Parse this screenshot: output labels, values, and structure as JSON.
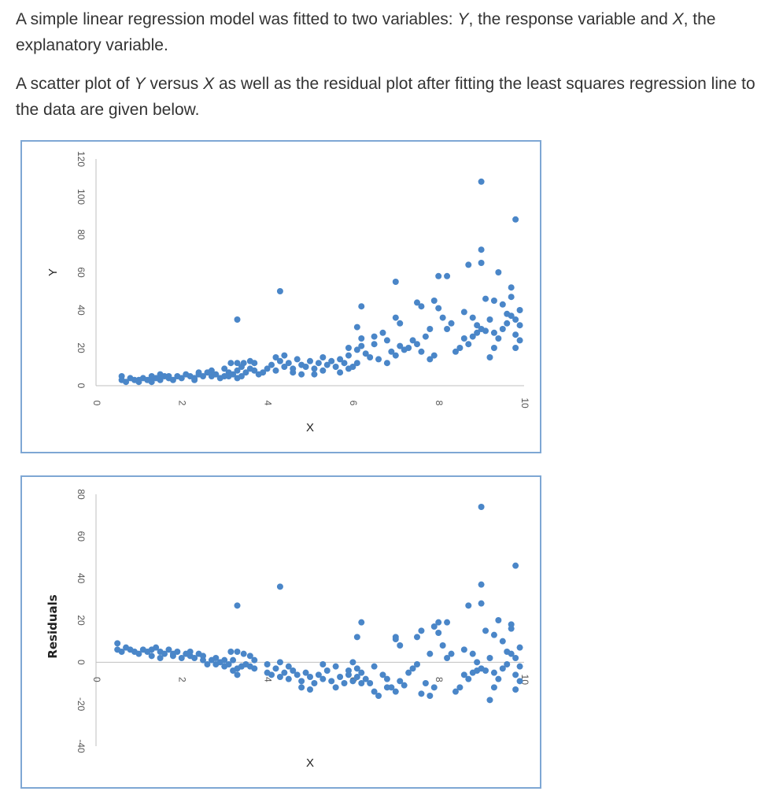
{
  "text": {
    "p1_a": "A simple linear regression model was fitted to two variables: ",
    "p1_y": "Y",
    "p1_b": ", the response variable and ",
    "p1_x": "X",
    "p1_c": ", the explanatory variable.",
    "p2_a": "A scatter plot of ",
    "p2_y": "Y",
    "p2_b": " versus ",
    "p2_x": "X",
    "p2_c": " as well as the residual plot after fitting the least squares regression line to the data are given below."
  },
  "colors": {
    "points": "#4a86c8",
    "frame": "#7ea7d4",
    "axis": "#bfbfbf"
  },
  "chart_data": [
    {
      "type": "scatter",
      "title": "",
      "xlabel": "X",
      "ylabel": "Y",
      "xlim": [
        0,
        10
      ],
      "ylim": [
        0,
        120
      ],
      "xticks": [
        "0",
        "2",
        "4",
        "6",
        "8",
        "10"
      ],
      "yticks": [
        "0",
        "20",
        "40",
        "60",
        "80",
        "100",
        "120"
      ],
      "points": [
        [
          0.6,
          5
        ],
        [
          0.6,
          3
        ],
        [
          0.7,
          2
        ],
        [
          0.8,
          4
        ],
        [
          0.9,
          3
        ],
        [
          1.0,
          2
        ],
        [
          1.1,
          4
        ],
        [
          1.2,
          3
        ],
        [
          1.3,
          5
        ],
        [
          1.4,
          4
        ],
        [
          1.5,
          3
        ],
        [
          1.5,
          6
        ],
        [
          1.6,
          5
        ],
        [
          1.7,
          4
        ],
        [
          1.8,
          3
        ],
        [
          1.9,
          5
        ],
        [
          2.0,
          4
        ],
        [
          2.1,
          6
        ],
        [
          2.2,
          5
        ],
        [
          2.3,
          4
        ],
        [
          2.4,
          6
        ],
        [
          2.5,
          5
        ],
        [
          2.6,
          7
        ],
        [
          2.7,
          5
        ],
        [
          2.8,
          6
        ],
        [
          2.9,
          4
        ],
        [
          3.0,
          5
        ],
        [
          3.1,
          7
        ],
        [
          3.2,
          6
        ],
        [
          3.3,
          8
        ],
        [
          3.4,
          5
        ],
        [
          3.5,
          7
        ],
        [
          3.6,
          9
        ],
        [
          3.7,
          8
        ],
        [
          3.8,
          6
        ],
        [
          3.9,
          7
        ],
        [
          1.0,
          3
        ],
        [
          1.3,
          2
        ],
        [
          1.7,
          5
        ],
        [
          2.3,
          3
        ],
        [
          2.7,
          8
        ],
        [
          3.1,
          5
        ],
        [
          2.4,
          7
        ],
        [
          3.0,
          9
        ],
        [
          3.3,
          4
        ],
        [
          3.4,
          10
        ],
        [
          3.15,
          12
        ],
        [
          3.3,
          12
        ],
        [
          3.45,
          12
        ],
        [
          3.6,
          13
        ],
        [
          3.7,
          12
        ],
        [
          3.3,
          35
        ],
        [
          4.3,
          50
        ],
        [
          4.0,
          9
        ],
        [
          4.1,
          11
        ],
        [
          4.2,
          8
        ],
        [
          4.3,
          13
        ],
        [
          4.4,
          10
        ],
        [
          4.5,
          12
        ],
        [
          4.6,
          9
        ],
        [
          4.7,
          14
        ],
        [
          4.8,
          11
        ],
        [
          4.9,
          10
        ],
        [
          5.0,
          13
        ],
        [
          5.1,
          9
        ],
        [
          5.2,
          12
        ],
        [
          5.3,
          8
        ],
        [
          5.4,
          11
        ],
        [
          5.5,
          13
        ],
        [
          5.6,
          10
        ],
        [
          5.7,
          7
        ],
        [
          5.8,
          12
        ],
        [
          5.9,
          9
        ],
        [
          6.0,
          10
        ],
        [
          6.1,
          12
        ],
        [
          4.2,
          15
        ],
        [
          4.4,
          16
        ],
        [
          4.6,
          7
        ],
        [
          4.8,
          6
        ],
        [
          5.1,
          6
        ],
        [
          5.3,
          15
        ],
        [
          5.7,
          14
        ],
        [
          5.9,
          16
        ],
        [
          5.9,
          20
        ],
        [
          6.1,
          19
        ],
        [
          6.2,
          21
        ],
        [
          6.3,
          17
        ],
        [
          6.4,
          15
        ],
        [
          6.5,
          22
        ],
        [
          6.6,
          14
        ],
        [
          6.8,
          12
        ],
        [
          6.2,
          25
        ],
        [
          6.5,
          26
        ],
        [
          6.1,
          31
        ],
        [
          6.2,
          42
        ],
        [
          6.7,
          28
        ],
        [
          6.8,
          24
        ],
        [
          6.9,
          18
        ],
        [
          7.0,
          16
        ],
        [
          7.1,
          21
        ],
        [
          7.2,
          19
        ],
        [
          7.0,
          36
        ],
        [
          7.1,
          33
        ],
        [
          7.3,
          20
        ],
        [
          7.4,
          24
        ],
        [
          7.5,
          22
        ],
        [
          7.6,
          18
        ],
        [
          7.7,
          26
        ],
        [
          7.8,
          14
        ],
        [
          7.9,
          16
        ],
        [
          7.0,
          55
        ],
        [
          7.5,
          44
        ],
        [
          7.6,
          42
        ],
        [
          7.8,
          30
        ],
        [
          7.9,
          45
        ],
        [
          8.0,
          41
        ],
        [
          8.0,
          58
        ],
        [
          8.2,
          58
        ],
        [
          8.1,
          36
        ],
        [
          8.2,
          30
        ],
        [
          8.3,
          33
        ],
        [
          8.4,
          18
        ],
        [
          8.5,
          20
        ],
        [
          8.6,
          25
        ],
        [
          8.7,
          22
        ],
        [
          8.8,
          26
        ],
        [
          8.7,
          64
        ],
        [
          8.9,
          32
        ],
        [
          9.0,
          30
        ],
        [
          9.1,
          29
        ],
        [
          9.2,
          35
        ],
        [
          9.3,
          28
        ],
        [
          9.4,
          25
        ],
        [
          9.5,
          30
        ],
        [
          9.6,
          33
        ],
        [
          9.7,
          37
        ],
        [
          9.8,
          27
        ],
        [
          9.9,
          32
        ],
        [
          8.8,
          36
        ],
        [
          8.9,
          28
        ],
        [
          9.2,
          15
        ],
        [
          9.3,
          20
        ],
        [
          9.5,
          43
        ],
        [
          9.6,
          38
        ],
        [
          9.7,
          52
        ],
        [
          9.8,
          35
        ],
        [
          9.9,
          40
        ],
        [
          9.0,
          108
        ],
        [
          9.0,
          72
        ],
        [
          9.0,
          65
        ],
        [
          9.4,
          60
        ],
        [
          9.3,
          45
        ],
        [
          9.8,
          88
        ],
        [
          9.7,
          47
        ],
        [
          9.8,
          20
        ],
        [
          9.9,
          24
        ],
        [
          9.1,
          46
        ],
        [
          8.6,
          39
        ]
      ]
    },
    {
      "type": "scatter",
      "title": "",
      "xlabel": "X",
      "ylabel": "Residuals",
      "xlim": [
        0,
        10
      ],
      "ylim": [
        -40,
        80
      ],
      "xticks": [
        "0",
        "2",
        "4",
        "6",
        "8",
        "10"
      ],
      "yticks": [
        "-40",
        "-20",
        "0",
        "20",
        "40",
        "60",
        "80"
      ],
      "points": [
        [
          0.5,
          9
        ],
        [
          0.5,
          6
        ],
        [
          0.6,
          5
        ],
        [
          0.7,
          7
        ],
        [
          0.8,
          6
        ],
        [
          0.9,
          5
        ],
        [
          1.0,
          4
        ],
        [
          1.1,
          6
        ],
        [
          1.2,
          5
        ],
        [
          1.3,
          3
        ],
        [
          1.4,
          7
        ],
        [
          1.5,
          5
        ],
        [
          1.6,
          4
        ],
        [
          1.7,
          6
        ],
        [
          1.8,
          3
        ],
        [
          1.9,
          5
        ],
        [
          2.0,
          2
        ],
        [
          2.1,
          4
        ],
        [
          2.2,
          3
        ],
        [
          2.3,
          2
        ],
        [
          2.4,
          4
        ],
        [
          2.5,
          1
        ],
        [
          2.6,
          -1
        ],
        [
          2.7,
          1
        ],
        [
          2.8,
          -1
        ],
        [
          2.9,
          0
        ],
        [
          3.0,
          -2
        ],
        [
          3.1,
          -1
        ],
        [
          3.2,
          1
        ],
        [
          3.3,
          -3
        ],
        [
          3.4,
          -2
        ],
        [
          3.5,
          -1
        ],
        [
          3.6,
          -2
        ],
        [
          3.7,
          -3
        ],
        [
          1.3,
          6
        ],
        [
          1.5,
          2
        ],
        [
          1.8,
          4
        ],
        [
          2.2,
          5
        ],
        [
          2.5,
          3
        ],
        [
          2.8,
          2
        ],
        [
          3.0,
          1
        ],
        [
          3.2,
          -4
        ],
        [
          3.3,
          -6
        ],
        [
          3.4,
          -2
        ],
        [
          3.15,
          5
        ],
        [
          3.3,
          5
        ],
        [
          3.45,
          4
        ],
        [
          3.6,
          3
        ],
        [
          3.7,
          1
        ],
        [
          3.3,
          27
        ],
        [
          4.3,
          36
        ],
        [
          4.0,
          -5
        ],
        [
          4.1,
          -6
        ],
        [
          4.2,
          -3
        ],
        [
          4.3,
          -7
        ],
        [
          4.4,
          -5
        ],
        [
          4.5,
          -8
        ],
        [
          4.6,
          -4
        ],
        [
          4.7,
          -6
        ],
        [
          4.8,
          -9
        ],
        [
          4.9,
          -5
        ],
        [
          5.0,
          -7
        ],
        [
          5.1,
          -10
        ],
        [
          5.2,
          -6
        ],
        [
          5.3,
          -8
        ],
        [
          5.4,
          -4
        ],
        [
          5.5,
          -9
        ],
        [
          5.6,
          -12
        ],
        [
          5.7,
          -7
        ],
        [
          5.8,
          -10
        ],
        [
          5.9,
          -6
        ],
        [
          6.0,
          -9
        ],
        [
          6.1,
          -7
        ],
        [
          4.0,
          -1
        ],
        [
          4.3,
          0
        ],
        [
          4.5,
          -2
        ],
        [
          4.8,
          -12
        ],
        [
          5.0,
          -13
        ],
        [
          5.3,
          -1
        ],
        [
          5.6,
          -2
        ],
        [
          5.9,
          -4
        ],
        [
          6.0,
          0
        ],
        [
          6.1,
          -3
        ],
        [
          6.2,
          -5
        ],
        [
          6.3,
          -8
        ],
        [
          6.4,
          -10
        ],
        [
          6.5,
          -14
        ],
        [
          6.6,
          -16
        ],
        [
          6.8,
          -12
        ],
        [
          6.2,
          -10
        ],
        [
          6.5,
          -2
        ],
        [
          6.1,
          12
        ],
        [
          6.2,
          19
        ],
        [
          6.7,
          -6
        ],
        [
          6.8,
          -8
        ],
        [
          6.9,
          -12
        ],
        [
          7.0,
          -14
        ],
        [
          7.1,
          -9
        ],
        [
          7.2,
          -11
        ],
        [
          7.0,
          11
        ],
        [
          7.1,
          8
        ],
        [
          7.3,
          -5
        ],
        [
          7.4,
          -3
        ],
        [
          7.5,
          -1
        ],
        [
          7.6,
          -15
        ],
        [
          7.7,
          -10
        ],
        [
          7.8,
          -16
        ],
        [
          7.9,
          -12
        ],
        [
          7.0,
          12
        ],
        [
          7.5,
          12
        ],
        [
          7.6,
          15
        ],
        [
          7.8,
          4
        ],
        [
          7.9,
          17
        ],
        [
          8.0,
          14
        ],
        [
          8.0,
          19
        ],
        [
          8.2,
          19
        ],
        [
          8.1,
          8
        ],
        [
          8.2,
          2
        ],
        [
          8.3,
          4
        ],
        [
          8.4,
          -14
        ],
        [
          8.5,
          -12
        ],
        [
          8.6,
          -6
        ],
        [
          8.7,
          -8
        ],
        [
          8.8,
          -5
        ],
        [
          8.7,
          27
        ],
        [
          8.9,
          0
        ],
        [
          9.0,
          -3
        ],
        [
          9.1,
          -4
        ],
        [
          9.2,
          2
        ],
        [
          9.3,
          -5
        ],
        [
          9.4,
          -8
        ],
        [
          9.5,
          -3
        ],
        [
          9.6,
          -1
        ],
        [
          9.7,
          4
        ],
        [
          9.8,
          -6
        ],
        [
          9.9,
          -2
        ],
        [
          8.8,
          4
        ],
        [
          8.9,
          -4
        ],
        [
          9.2,
          -18
        ],
        [
          9.3,
          -12
        ],
        [
          9.5,
          10
        ],
        [
          9.6,
          5
        ],
        [
          9.7,
          18
        ],
        [
          9.8,
          2
        ],
        [
          9.9,
          7
        ],
        [
          9.0,
          74
        ],
        [
          9.0,
          37
        ],
        [
          9.0,
          28
        ],
        [
          9.4,
          20
        ],
        [
          9.3,
          13
        ],
        [
          9.8,
          46
        ],
        [
          9.7,
          16
        ],
        [
          9.8,
          -13
        ],
        [
          9.9,
          -9
        ],
        [
          9.1,
          15
        ],
        [
          8.6,
          6
        ]
      ]
    }
  ]
}
